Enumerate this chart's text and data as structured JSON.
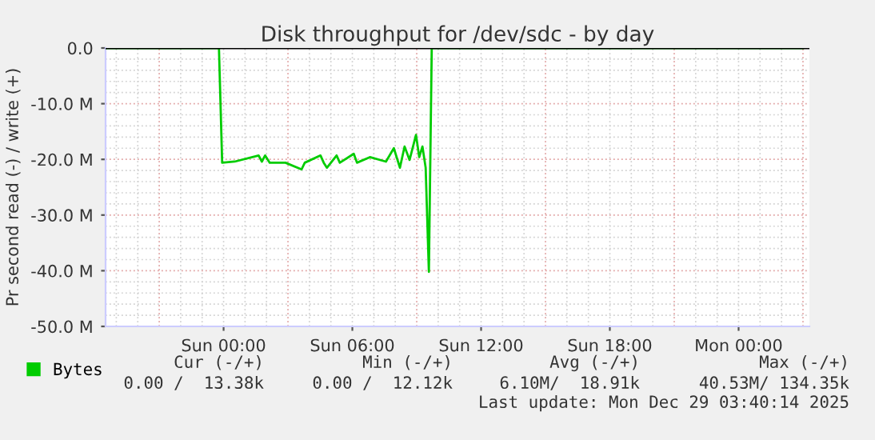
{
  "chart_data": {
    "type": "line",
    "title": "Disk throughput for /dev/sdc - by day",
    "ylabel": "Pr second read (-) / write (+)",
    "xlim": [
      "2025-12-27T18:30",
      "2025-12-29T03:18"
    ],
    "ylim": [
      -50,
      0
    ],
    "xticks": [
      {
        "value": "2025-12-28T00:00",
        "label": "Sun 00:00"
      },
      {
        "value": "2025-12-28T06:00",
        "label": "Sun 06:00"
      },
      {
        "value": "2025-12-28T12:00",
        "label": "Sun 12:00"
      },
      {
        "value": "2025-12-28T18:00",
        "label": "Sun 18:00"
      },
      {
        "value": "2025-12-29T00:00",
        "label": "Mon 00:00"
      }
    ],
    "yticks": [
      {
        "value": 0,
        "label": "0.0"
      },
      {
        "value": -10,
        "label": "-10.0 M"
      },
      {
        "value": -20,
        "label": "-20.0 M"
      },
      {
        "value": -30,
        "label": "-30.0 M"
      },
      {
        "value": -40,
        "label": "-40.0 M"
      },
      {
        "value": -50,
        "label": "-50.0 M"
      }
    ],
    "grid": true,
    "legend": "bottom left",
    "line_style": "solid",
    "marker": "none",
    "ref_lines": [
      {
        "axis": "y",
        "value": 0,
        "color": "#000000"
      }
    ],
    "series": [
      {
        "name": "Bytes",
        "color": "#00cc00",
        "x": [
          "2025-12-27T18:31",
          "2025-12-27T23:47",
          "2025-12-27T23:56",
          "2025-12-28T00:31",
          "2025-12-28T01:38",
          "2025-12-28T01:47",
          "2025-12-28T01:56",
          "2025-12-28T02:09",
          "2025-12-28T02:53",
          "2025-12-28T03:38",
          "2025-12-28T03:47",
          "2025-12-28T04:31",
          "2025-12-28T04:40",
          "2025-12-28T04:49",
          "2025-12-28T05:16",
          "2025-12-28T05:25",
          "2025-12-28T06:04",
          "2025-12-28T06:13",
          "2025-12-28T06:49",
          "2025-12-28T07:34",
          "2025-12-28T07:56",
          "2025-12-28T08:13",
          "2025-12-28T08:26",
          "2025-12-28T08:40",
          "2025-12-28T08:58",
          "2025-12-28T09:07",
          "2025-12-28T09:16",
          "2025-12-28T09:25",
          "2025-12-28T09:34",
          "2025-12-28T09:42",
          "2025-12-29T03:00"
        ],
        "values": [
          0,
          0,
          -20.6,
          -20.4,
          -19.3,
          -20.4,
          -19.3,
          -20.6,
          -20.6,
          -21.8,
          -20.6,
          -19.3,
          -20.6,
          -21.5,
          -19.3,
          -20.6,
          -19.0,
          -20.6,
          -19.6,
          -20.4,
          -18.0,
          -21.5,
          -17.7,
          -20.1,
          -15.6,
          -19.6,
          -17.7,
          -21.5,
          -40.2,
          0,
          0
        ]
      }
    ],
    "annotations": [
      "Cur (-/+)",
      "Min (-/+)",
      "Avg (-/+)",
      "Max (-/+)",
      "0.00 /  13.38k",
      "0.00 /  12.12k",
      "6.10M/  18.91k",
      "40.53M/ 134.35k",
      "Last update: Mon Dec 29 03:40:14 2025"
    ]
  }
}
